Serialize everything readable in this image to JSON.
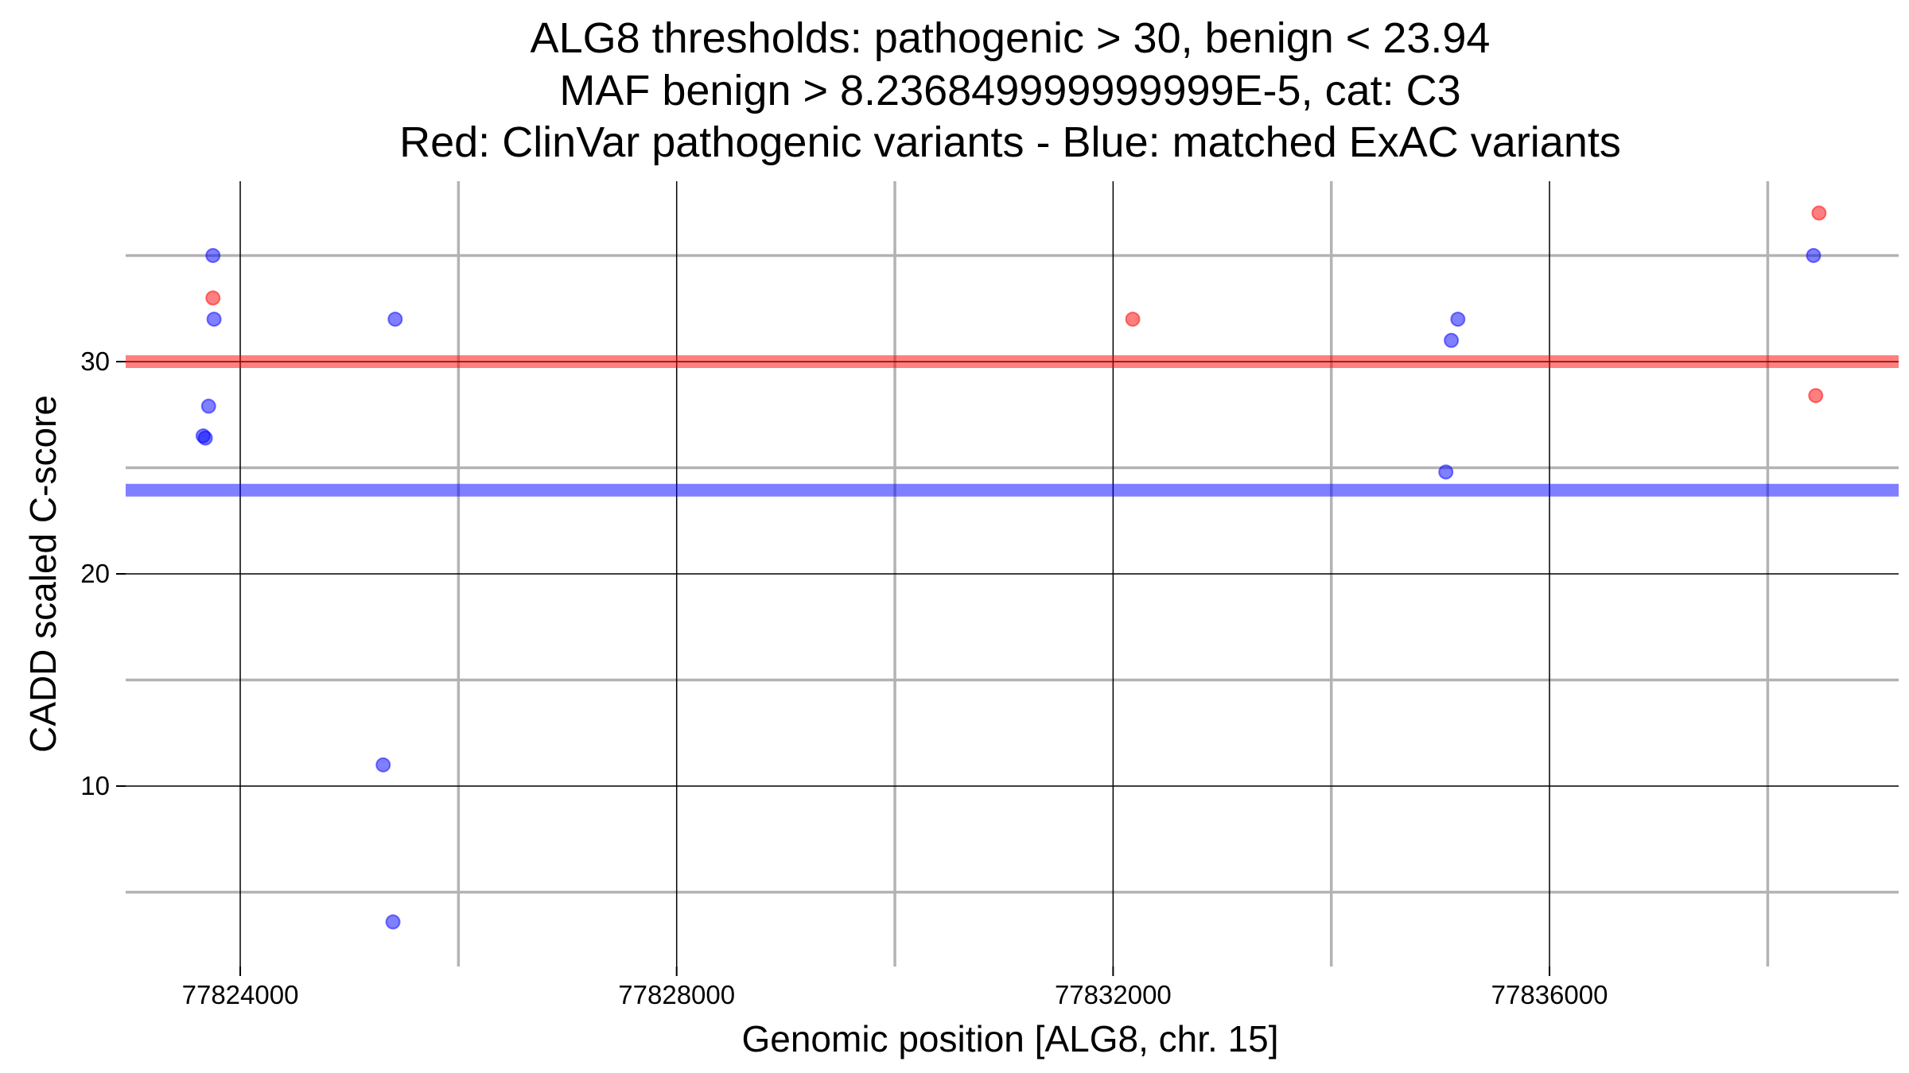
{
  "chart_data": {
    "type": "scatter",
    "title_lines": [
      "ALG8 thresholds: pathogenic > 30, benign < 23.94",
      "MAF benign > 8.236849999999999E-5, cat: C3",
      "Red: ClinVar pathogenic variants - Blue: matched ExAC variants"
    ],
    "xlabel": "Genomic position [ALG8, chr. 15]",
    "ylabel": "CADD scaled C-score",
    "xlim": [
      77822950,
      77839200
    ],
    "ylim": [
      1.5,
      38.5
    ],
    "x_major_ticks": [
      77824000,
      77828000,
      77832000,
      77836000
    ],
    "x_minor_ticks": [
      77826000,
      77830000,
      77834000,
      77838000
    ],
    "y_major_ticks": [
      10,
      20,
      30
    ],
    "y_minor_ticks": [
      5,
      15,
      25,
      35
    ],
    "x_tick_labels": [
      "77824000",
      "77828000",
      "77832000",
      "77836000"
    ],
    "y_tick_labels": [
      "10",
      "20",
      "30"
    ],
    "grid": true,
    "thresholds": [
      {
        "name": "pathogenic",
        "value": 30,
        "color": "#ff0000"
      },
      {
        "name": "benign",
        "value": 23.94,
        "color": "#0000ff"
      }
    ],
    "series": [
      {
        "color": "#ff0000",
        "points": [
          {
            "x": 77823750,
            "y": 33
          },
          {
            "x": 77832180,
            "y": 32
          },
          {
            "x": 77838470,
            "y": 37
          },
          {
            "x": 77838440,
            "y": 28.4
          }
        ]
      },
      {
        "color": "#0000ff",
        "points": [
          {
            "x": 77823750,
            "y": 35
          },
          {
            "x": 77823760,
            "y": 32
          },
          {
            "x": 77823710,
            "y": 27.9
          },
          {
            "x": 77823660,
            "y": 26.5
          },
          {
            "x": 77823680,
            "y": 26.4
          },
          {
            "x": 77825420,
            "y": 32
          },
          {
            "x": 77825310,
            "y": 11
          },
          {
            "x": 77825400,
            "y": 3.6
          },
          {
            "x": 77835160,
            "y": 32
          },
          {
            "x": 77835100,
            "y": 31
          },
          {
            "x": 77835050,
            "y": 24.8
          },
          {
            "x": 77838420,
            "y": 35
          }
        ]
      }
    ]
  }
}
